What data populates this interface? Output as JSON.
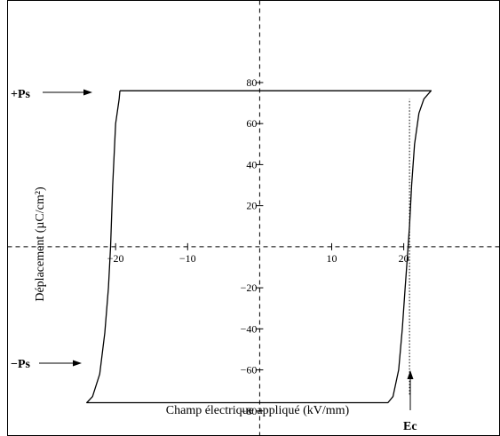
{
  "chart_data": {
    "type": "line",
    "title": "",
    "xlabel": "Champ électrique appliqué (kV/mm)",
    "ylabel": "Déplacement (µC/cm²)",
    "xlim": [
      -35,
      33.3
    ],
    "ylim": [
      -92,
      120
    ],
    "x_ticks": [
      -20,
      -10,
      10,
      20
    ],
    "x_tick_labels": [
      "−20",
      "−10",
      "10",
      "20"
    ],
    "y_ticks": [
      80,
      60,
      40,
      20,
      -20,
      -40,
      -60,
      -80
    ],
    "y_tick_labels": [
      "80",
      "60",
      "40",
      "20",
      "−20",
      "−40",
      "−60",
      "−80"
    ],
    "grid": false,
    "series": [
      {
        "name": "",
        "style": "solid",
        "x": [
          -19.4,
          23.8,
          22.8,
          22.1,
          21.5,
          21.1,
          20.8,
          20.5,
          20.2,
          19.8,
          19.3,
          18.5,
          17.8,
          -24,
          -23.2,
          -22.2,
          -21.5,
          -21,
          -20.7,
          -20.4,
          -20,
          -19.5,
          -19.4
        ],
        "y": [
          76,
          76,
          72,
          65,
          50,
          30,
          10,
          -5,
          -20,
          -40,
          -60,
          -73,
          -76,
          -76,
          -73,
          -62,
          -42,
          -20,
          0,
          30,
          60,
          72,
          76
        ]
      },
      {
        "name": "",
        "style": "dotted",
        "x": [
          20.8,
          20.8
        ],
        "y": [
          -72,
          72
        ]
      }
    ],
    "annotations": {
      "plus_ps": "+Ps",
      "minus_ps": "−Ps",
      "ec": "Ec"
    },
    "colors": {
      "line": "#000000",
      "background": "#ffffff"
    }
  }
}
